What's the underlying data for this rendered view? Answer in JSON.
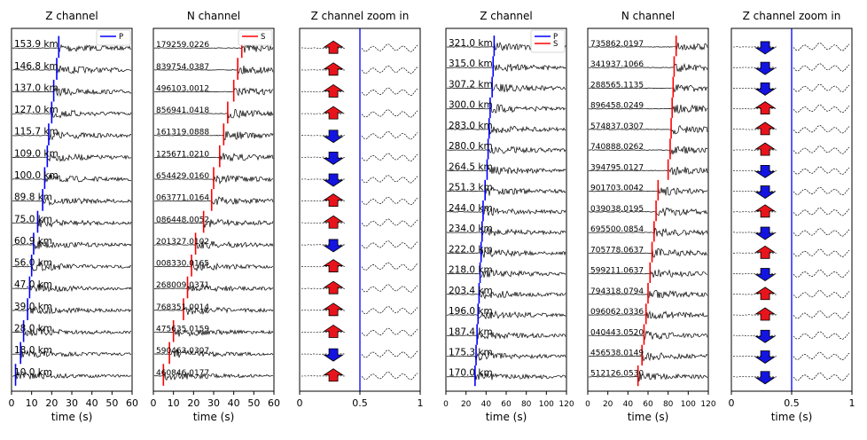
{
  "figure": {
    "colors": {
      "p_pick": "#0000ff",
      "s_pick": "#ff0000",
      "up_arrow": "#e8141b",
      "down_arrow": "#1414e0"
    }
  },
  "chart_data": [
    {
      "type": "line",
      "title": "Z channel",
      "xlabel": "time (s)",
      "xlim": [
        0,
        60
      ],
      "xticks": [
        0,
        10,
        20,
        30,
        40,
        50,
        60
      ],
      "legend": {
        "placement": "top-right",
        "entries": [
          "P"
        ]
      },
      "labels": [
        "153.9 km",
        "146.8 km",
        "137.0 km",
        "127.0 km",
        "115.7 km",
        "109.0 km",
        "100.0 km",
        "89.8 km",
        "75.0 km",
        "60.9 km",
        "56.0 km",
        "47.0 km",
        "39.0 km",
        "28.0 km",
        "18.0 km",
        "10.0 km"
      ],
      "pick_series": "P",
      "picks": [
        23.5,
        22.5,
        21,
        20,
        18.5,
        17.8,
        16.5,
        15.5,
        13,
        11,
        10,
        9,
        8,
        6,
        4.5,
        2
      ],
      "grid": false
    },
    {
      "type": "line",
      "title": "N channel",
      "xlabel": "time (s)",
      "xlim": [
        0,
        60
      ],
      "xticks": [
        0,
        10,
        20,
        30,
        40,
        50,
        60
      ],
      "legend": {
        "placement": "top-right",
        "entries": [
          "S"
        ]
      },
      "labels": [
        "179259.0226",
        "839754.0387",
        "496103.0012",
        "856941.0418",
        "161319.0888",
        "125671.0210",
        "654429.0160",
        "063771.0164",
        "086448.0052",
        "201327.0102",
        "008330.0165",
        "268009.0371",
        "768351.0014",
        "475635.0159",
        "590463.0307",
        "460846.0177"
      ],
      "pick_series": "S",
      "picks": [
        44,
        42,
        40,
        37,
        35,
        33,
        30,
        29,
        25,
        21,
        19,
        17,
        15,
        10,
        8,
        5
      ],
      "grid": false
    },
    {
      "type": "line",
      "title": "Z channel zoom in",
      "xlabel": "",
      "xlim": [
        0,
        1
      ],
      "xticks": [
        0.0,
        0.5,
        1.0
      ],
      "pick_x": 0.5,
      "polarity": [
        "up",
        "up",
        "up",
        "up",
        "down",
        "down",
        "down",
        "up",
        "up",
        "down",
        "up",
        "up",
        "up",
        "up",
        "down",
        "up"
      ],
      "grid": false
    },
    {
      "type": "line",
      "title": "Z channel",
      "xlabel": "time (s)",
      "xlim": [
        0,
        120
      ],
      "xticks": [
        0,
        20,
        40,
        60,
        80,
        100,
        120
      ],
      "legend": {
        "placement": "top-right",
        "entries": [
          "P",
          "S"
        ]
      },
      "labels": [
        "321.0 km",
        "315.0 km",
        "307.2 km",
        "300.0 km",
        "283.0 km",
        "280.0 km",
        "264.5 km",
        "251.3 km",
        "244.0 km",
        "234.0 km",
        "222.0 km",
        "218.0 km",
        "203.4 km",
        "196.0 km",
        "187.4 km",
        "175.3 km",
        "170.0 km"
      ],
      "pick_series": "P",
      "picks": [
        48,
        47,
        46,
        44,
        43,
        42,
        41,
        39,
        37,
        36,
        35,
        34,
        33,
        32,
        31,
        30,
        29
      ],
      "grid": false
    },
    {
      "type": "line",
      "title": "N channel",
      "xlabel": "time (s)",
      "xlim": [
        0,
        120
      ],
      "xticks": [
        0,
        20,
        40,
        60,
        80,
        100,
        120
      ],
      "labels": [
        "735862.0197",
        "341937.1066",
        "288565.1135",
        "896458.0249",
        "574837.0307",
        "740888.0262",
        "394795.0127",
        "901703.0042",
        "039038.0195",
        "695500.0854",
        "705778.0637",
        "599211.0637",
        "794318.0794",
        "096062.0336",
        "040443.0520",
        "456538.0149",
        "512126.0530"
      ],
      "pick_series": "S",
      "picks": [
        88,
        86,
        85,
        84,
        83,
        82,
        80,
        70,
        68,
        66,
        64,
        62,
        60,
        58,
        56,
        54,
        50
      ],
      "grid": false
    },
    {
      "type": "line",
      "title": "Z channel zoom in",
      "xlabel": "time (s)",
      "xlim": [
        0,
        1
      ],
      "xticks": [
        0.0,
        0.5,
        1.0
      ],
      "pick_x": 0.5,
      "polarity": [
        "down",
        "down",
        "down",
        "up",
        "up",
        "up",
        "down",
        "down",
        "up",
        "down",
        "up",
        "down",
        "up",
        "up",
        "down",
        "down",
        "down"
      ],
      "grid": false
    }
  ]
}
